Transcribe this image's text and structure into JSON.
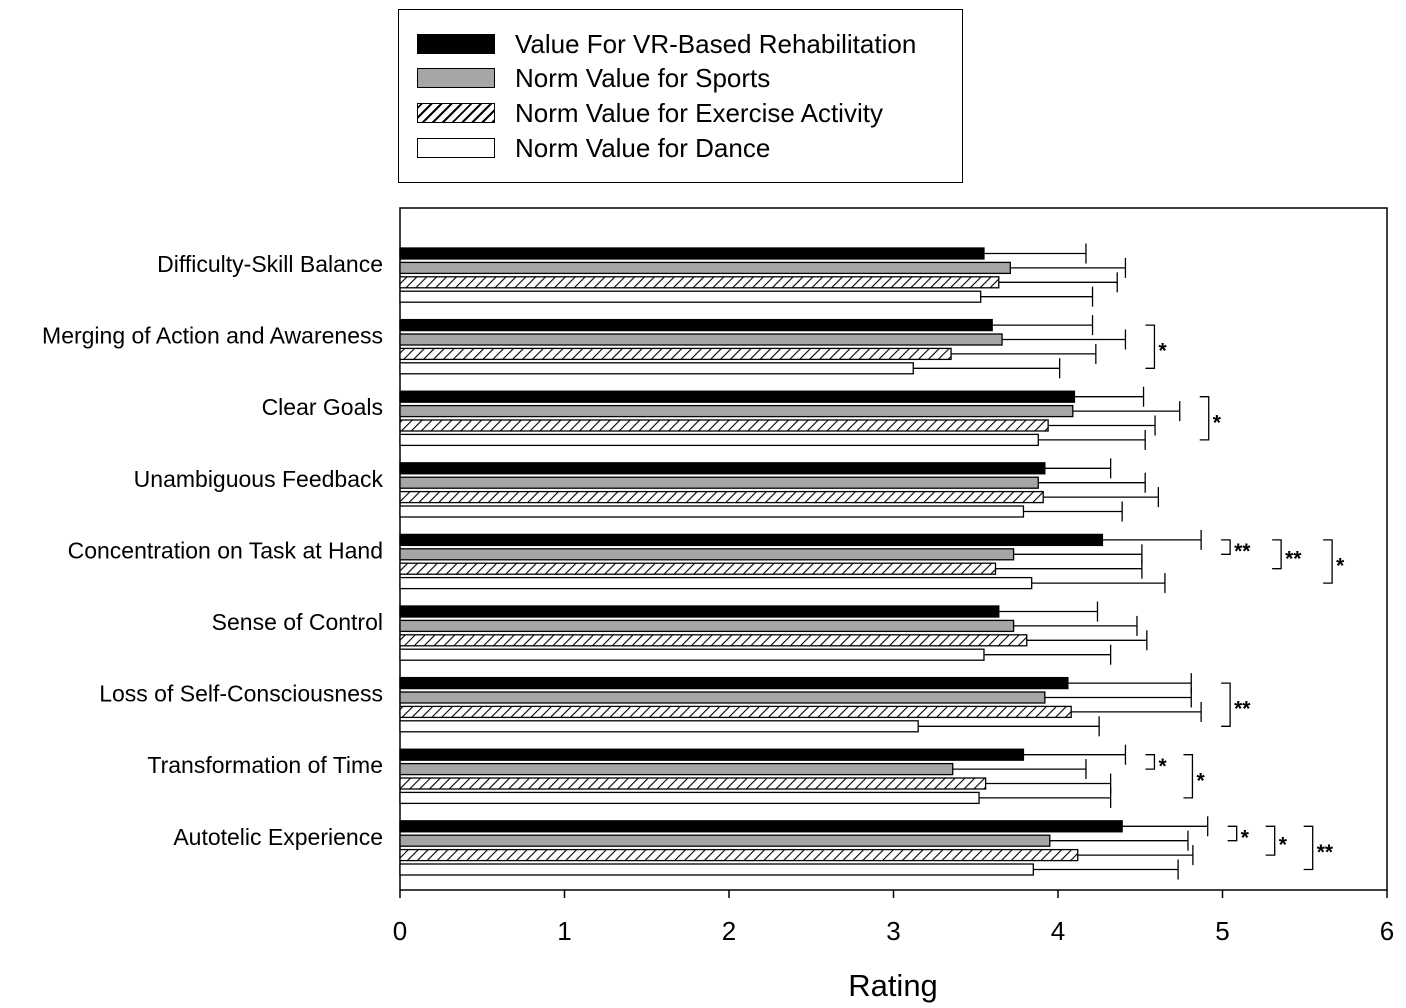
{
  "chart_data": {
    "type": "bar",
    "orientation": "horizontal",
    "xlabel": "Rating",
    "xlim": [
      0,
      6
    ],
    "xticks": [
      "0",
      "1",
      "2",
      "3",
      "4",
      "5",
      "6"
    ],
    "grid": false,
    "legend_position": "top",
    "categories": [
      "Difficulty-Skill Balance",
      "Merging of Action and Awareness",
      "Clear Goals",
      "Unambiguous Feedback",
      "Concentration on Task at Hand",
      "Sense of Control",
      "Loss of Self-Consciousness",
      "Transformation of Time",
      "Autotelic Experience"
    ],
    "series": [
      {
        "name": "Value For VR-Based Rehabilitation",
        "fill": "solid",
        "color": "#000000",
        "values": [
          3.55,
          3.6,
          4.1,
          3.92,
          4.27,
          3.64,
          4.06,
          3.79,
          4.39
        ],
        "errors": [
          0.62,
          0.61,
          0.42,
          0.4,
          0.6,
          0.6,
          0.75,
          0.62,
          0.52
        ]
      },
      {
        "name": "Norm Value for Sports",
        "fill": "gray",
        "color": "#a6a6a6",
        "values": [
          3.71,
          3.66,
          4.09,
          3.88,
          3.73,
          3.73,
          3.92,
          3.36,
          3.95
        ],
        "errors": [
          0.7,
          0.75,
          0.65,
          0.65,
          0.78,
          0.75,
          0.89,
          0.81,
          0.84
        ]
      },
      {
        "name": "Norm Value for Exercise Activity",
        "fill": "hatched",
        "color": "#000000",
        "values": [
          3.64,
          3.35,
          3.94,
          3.91,
          3.62,
          3.81,
          4.08,
          3.56,
          4.12
        ],
        "errors": [
          0.72,
          0.88,
          0.65,
          0.7,
          0.89,
          0.73,
          0.79,
          0.76,
          0.7
        ]
      },
      {
        "name": "Norm Value for Dance",
        "fill": "white",
        "color": "#ffffff",
        "values": [
          3.53,
          3.12,
          3.88,
          3.79,
          3.84,
          3.55,
          3.15,
          3.52,
          3.85
        ],
        "errors": [
          0.68,
          0.89,
          0.65,
          0.6,
          0.81,
          0.77,
          1.1,
          0.8,
          0.88
        ]
      }
    ],
    "significance": [
      {
        "category": "Merging of Action and Awareness",
        "series": [
          0,
          3
        ],
        "label": "*"
      },
      {
        "category": "Clear Goals",
        "series": [
          0,
          3
        ],
        "label": "*"
      },
      {
        "category": "Concentration on Task at Hand",
        "series": [
          0,
          1
        ],
        "label": "**"
      },
      {
        "category": "Concentration on Task at Hand",
        "series": [
          0,
          2
        ],
        "label": "**"
      },
      {
        "category": "Concentration on Task at Hand",
        "series": [
          0,
          3
        ],
        "label": "*"
      },
      {
        "category": "Loss of Self-Consciousness",
        "series": [
          0,
          3
        ],
        "label": "**"
      },
      {
        "category": "Transformation of Time",
        "series": [
          0,
          1
        ],
        "label": "*"
      },
      {
        "category": "Transformation of Time",
        "series": [
          0,
          3
        ],
        "label": "*"
      },
      {
        "category": "Autotelic Experience",
        "series": [
          0,
          1
        ],
        "label": "*"
      },
      {
        "category": "Autotelic Experience",
        "series": [
          0,
          2
        ],
        "label": "*"
      },
      {
        "category": "Autotelic Experience",
        "series": [
          0,
          3
        ],
        "label": "**"
      }
    ]
  }
}
